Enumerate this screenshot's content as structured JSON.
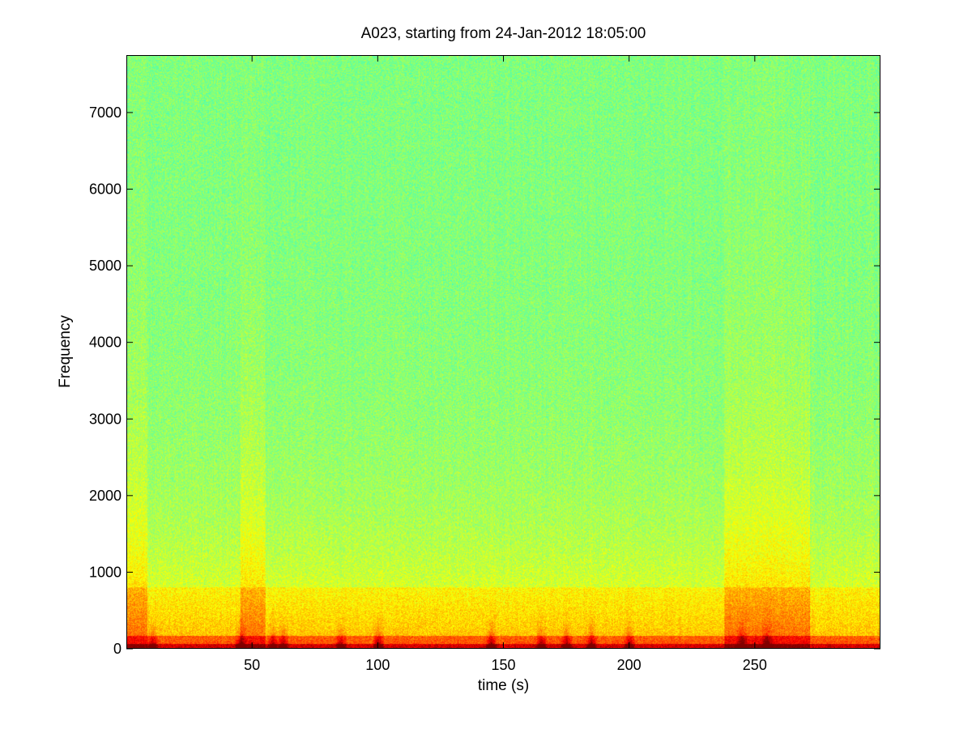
{
  "chart_data": {
    "type": "heatmap",
    "title": "A023, starting from 24-Jan-2012 18:05:00",
    "xlabel": "time (s)",
    "ylabel": "Frequency",
    "xlim": [
      0,
      300
    ],
    "ylim": [
      0,
      7750
    ],
    "x_ticks": [
      50,
      100,
      150,
      200,
      250
    ],
    "y_ticks": [
      0,
      1000,
      2000,
      3000,
      4000,
      5000,
      6000,
      7000
    ],
    "colormap": "jet",
    "colors": {
      "background_level": "#33e58a",
      "mid_level": "#f2f21a",
      "high_level": "#c40000"
    },
    "intensity_profile": {
      "low_frequency_band_hz": [
        0,
        800
      ],
      "bright_time_segments_s": [
        [
          0,
          8
        ],
        [
          45,
          55
        ],
        [
          238,
          272
        ]
      ],
      "energetic_bursts_s": [
        10,
        45,
        58,
        62,
        85,
        100,
        145,
        165,
        175,
        185,
        200,
        245,
        255
      ]
    }
  }
}
